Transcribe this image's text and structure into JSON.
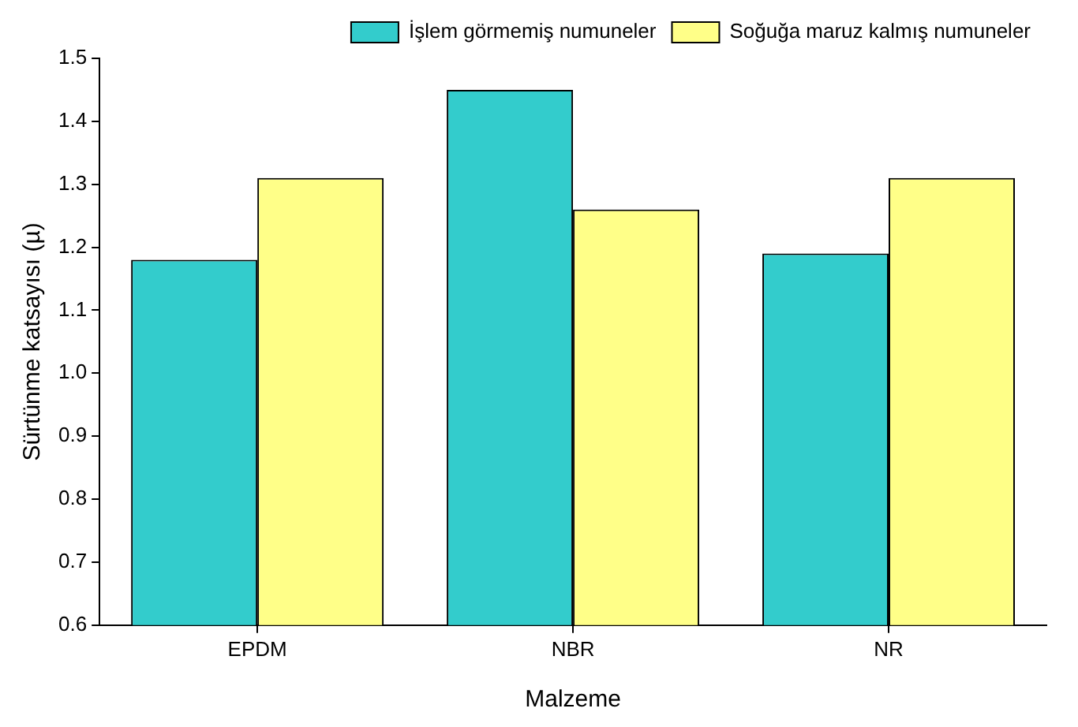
{
  "chart_data": {
    "type": "bar",
    "xlabel": "Malzeme",
    "ylabel": "Sürtünme katsayısı (µ)",
    "categories": [
      "EPDM",
      "NBR",
      "NR"
    ],
    "series": [
      {
        "name": "İşlem görmemiş numuneler",
        "color": "#33cccc",
        "values": [
          1.18,
          1.45,
          1.19
        ]
      },
      {
        "name": "Soğuğa maruz kalmış numuneler",
        "color": "#ffff88",
        "values": [
          1.31,
          1.26,
          1.31
        ]
      }
    ],
    "ylim": [
      0.6,
      1.5
    ],
    "yticks": [
      0.6,
      0.7,
      0.8,
      0.9,
      {
        "value": 1,
        "label": "1.0"
      },
      1.1,
      1.2,
      1.3,
      1.4,
      1.5
    ],
    "grid": false,
    "legend": "top right"
  }
}
